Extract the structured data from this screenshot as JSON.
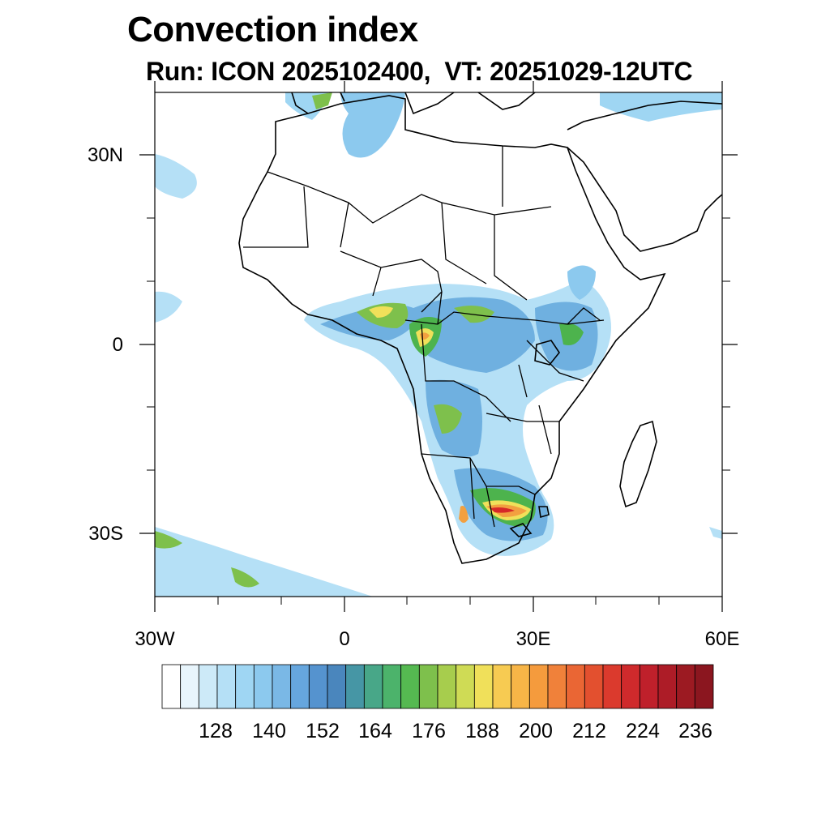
{
  "title": "Convection index",
  "subtitle": "Run: ICON 2025102400,  VT: 20251029-12UTC",
  "map": {
    "region": "Africa",
    "projection": "lat-lon",
    "lon_range": [
      -30,
      60
    ],
    "lat_range": [
      -40,
      40
    ],
    "lat_ticks": [
      "30N",
      "0",
      "30S"
    ],
    "lon_ticks": [
      "30W",
      "0",
      "30E",
      "60E"
    ],
    "colors": {
      "outline": "#000000",
      "light_blue": "#a6d6f2",
      "mid_blue": "#6fb0e0",
      "green": "#4db34d",
      "yellow": "#f0e05a",
      "orange": "#f2a040",
      "red": "#d62828"
    }
  },
  "colorbar": {
    "labels": [
      "128",
      "140",
      "152",
      "164",
      "176",
      "188",
      "200",
      "212",
      "224",
      "236"
    ],
    "colors": [
      "#ffffff",
      "#e8f5fc",
      "#cdeaf8",
      "#b5e0f6",
      "#9fd6f3",
      "#8cc9ee",
      "#7ab8e6",
      "#66a6de",
      "#5593cf",
      "#4a86bd",
      "#4696a5",
      "#48a788",
      "#4cb36b",
      "#55b951",
      "#7ec04c",
      "#a7cd4d",
      "#cfdb55",
      "#f0e05a",
      "#f7cb52",
      "#f7b547",
      "#f59b3d",
      "#f0813a",
      "#ea6634",
      "#e3502f",
      "#db3a2d",
      "#cf2a2c",
      "#bf202b",
      "#ad1c27",
      "#9c1a22",
      "#8b161f"
    ]
  }
}
